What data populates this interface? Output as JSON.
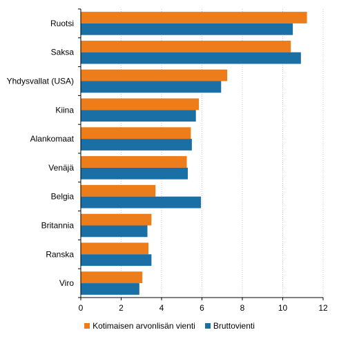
{
  "chart_data": {
    "type": "bar",
    "orientation": "horizontal",
    "categories": [
      "Ruotsi",
      "Saksa",
      "Yhdysvallat (USA)",
      "Kiina",
      "Alankomaat",
      "Venäjä",
      "Belgia",
      "Britannia",
      "Ranska",
      "Viro"
    ],
    "series": [
      {
        "name": "Kotimaisen arvonlisän vienti",
        "color": "#ed7d1b",
        "values": [
          11.2,
          10.4,
          7.25,
          5.85,
          5.45,
          5.25,
          3.7,
          3.5,
          3.35,
          3.05
        ]
      },
      {
        "name": "Bruttovienti",
        "color": "#1a6fa5",
        "values": [
          10.5,
          10.9,
          6.95,
          5.7,
          5.5,
          5.3,
          5.95,
          3.3,
          3.5,
          2.9
        ]
      }
    ],
    "xlim": [
      0,
      12
    ],
    "xticks": [
      "0",
      "2",
      "4",
      "6",
      "8",
      "10",
      "12"
    ],
    "grid": "vertical",
    "legend_position": "bottom"
  }
}
